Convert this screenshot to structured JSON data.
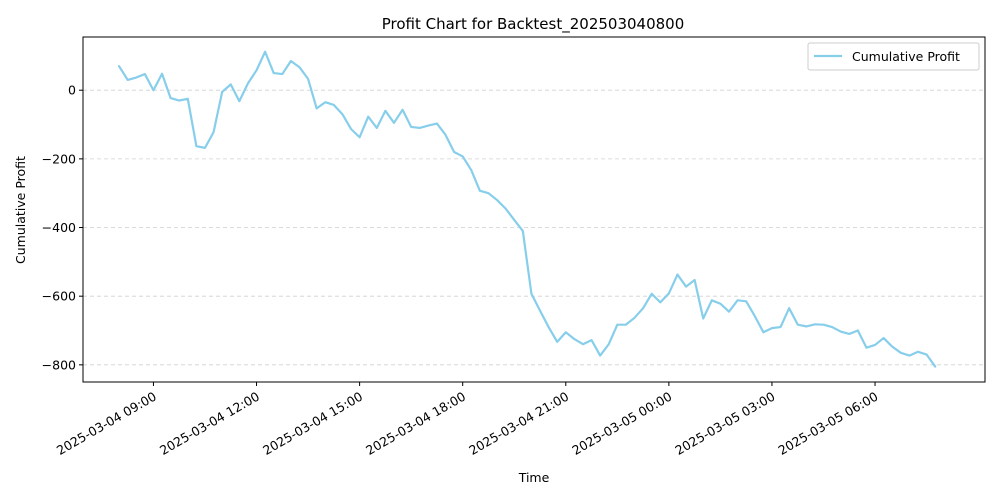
{
  "chart_data": {
    "type": "line",
    "title": "Profit Chart for Backtest_202503040800",
    "xlabel": "Time",
    "ylabel": "Cumulative Profit",
    "x_start": "2025-03-04 08:00",
    "x_step_minutes": 15,
    "xlim": [
      "2025-03-04 06:57",
      "2025-03-05 09:12"
    ],
    "ylim": [
      -850,
      155
    ],
    "xticks": [
      {
        "time": "2025-03-04 09:00",
        "label": "2025-03-04 09:00"
      },
      {
        "time": "2025-03-04 12:00",
        "label": "2025-03-04 12:00"
      },
      {
        "time": "2025-03-04 15:00",
        "label": "2025-03-04 15:00"
      },
      {
        "time": "2025-03-04 18:00",
        "label": "2025-03-04 18:00"
      },
      {
        "time": "2025-03-04 21:00",
        "label": "2025-03-04 21:00"
      },
      {
        "time": "2025-03-05 00:00",
        "label": "2025-03-05 00:00"
      },
      {
        "time": "2025-03-05 03:00",
        "label": "2025-03-05 03:00"
      },
      {
        "time": "2025-03-05 06:00",
        "label": "2025-03-05 06:00"
      }
    ],
    "yticks": [
      {
        "value": 0,
        "label": "0"
      },
      {
        "value": -200,
        "label": "−200"
      },
      {
        "value": -400,
        "label": "−400"
      },
      {
        "value": -600,
        "label": "−600"
      },
      {
        "value": -800,
        "label": "−800"
      }
    ],
    "grid": "y-dashed",
    "legend_position": "top-right",
    "series": [
      {
        "name": "Cumulative Profit",
        "color": "#87ceeb",
        "values": [
          70,
          30,
          37,
          47,
          0,
          48,
          -23,
          -30,
          -25,
          -163,
          -168,
          -122,
          -5,
          17,
          -32,
          20,
          58,
          112,
          50,
          47,
          85,
          67,
          33,
          -53,
          -35,
          -43,
          -70,
          -113,
          -137,
          -77,
          -110,
          -60,
          -95,
          -57,
          -107,
          -110,
          -103,
          -97,
          -130,
          -180,
          -193,
          -233,
          -293,
          -300,
          -320,
          -345,
          -378,
          -410,
          -593,
          -642,
          -690,
          -733,
          -705,
          -725,
          -740,
          -728,
          -773,
          -740,
          -683,
          -683,
          -663,
          -635,
          -593,
          -618,
          -592,
          -537,
          -572,
          -553,
          -665,
          -612,
          -622,
          -645,
          -612,
          -615,
          -658,
          -705,
          -693,
          -690,
          -635,
          -683,
          -688,
          -682,
          -683,
          -690,
          -703,
          -710,
          -700,
          -750,
          -742,
          -722,
          -747,
          -765,
          -773,
          -762,
          -770,
          -805
        ]
      }
    ]
  }
}
